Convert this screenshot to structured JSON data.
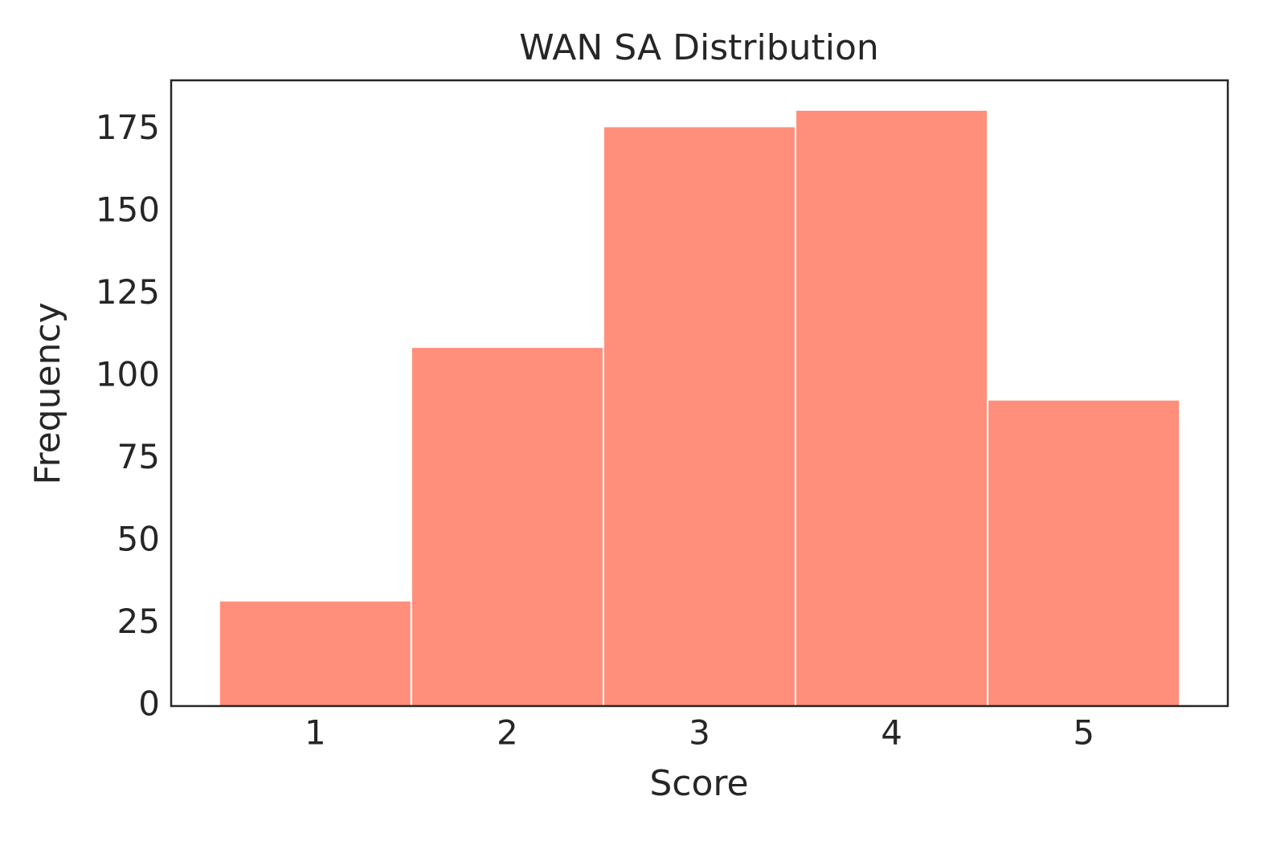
{
  "chart_data": {
    "type": "histogram",
    "title": "WAN SA Distribution",
    "x_label": "Score",
    "y_label": "Frequency",
    "bins": [
      0.5,
      1.5,
      2.5,
      3.5,
      4.5,
      5.5
    ],
    "values": [
      32,
      109,
      176,
      181,
      93
    ],
    "color": "#ff8f7b",
    "xlim": [
      0.25,
      5.75
    ],
    "xticks": [
      1,
      2,
      3,
      4,
      5
    ],
    "ylim": [
      0,
      190
    ],
    "yticks": [
      0,
      25,
      50,
      75,
      100,
      125,
      150,
      175
    ],
    "grid": false
  }
}
